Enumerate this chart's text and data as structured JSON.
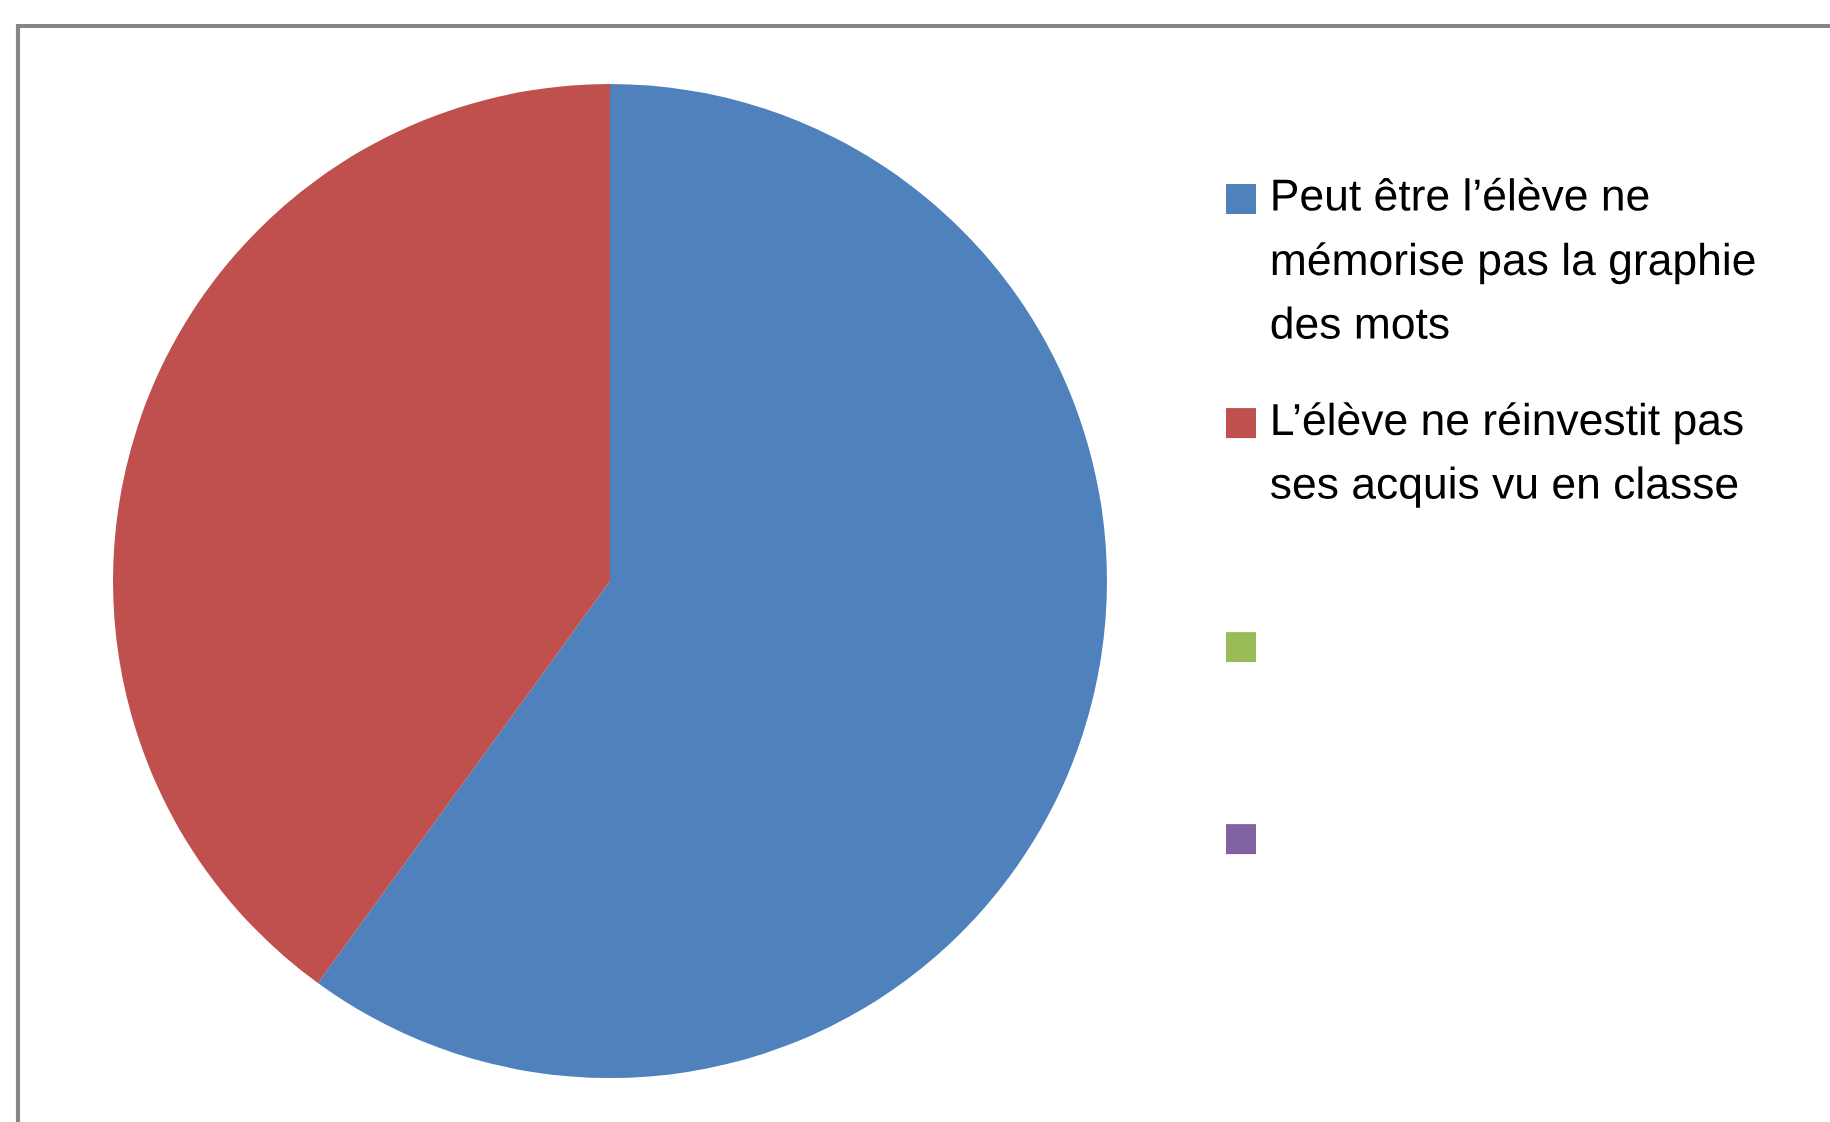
{
  "chart_data": {
    "type": "pie",
    "categories": [
      "Peut être l’élève ne mémorise pas la graphie des mots",
      "L’élève ne réinvestit pas ses acquis vu en classe",
      null,
      null
    ],
    "values": [
      60,
      40,
      null,
      null
    ],
    "colors": [
      "#4f81bd",
      "#c0504d",
      "#9bbb59",
      "#8064a2"
    ],
    "legend": "right"
  }
}
